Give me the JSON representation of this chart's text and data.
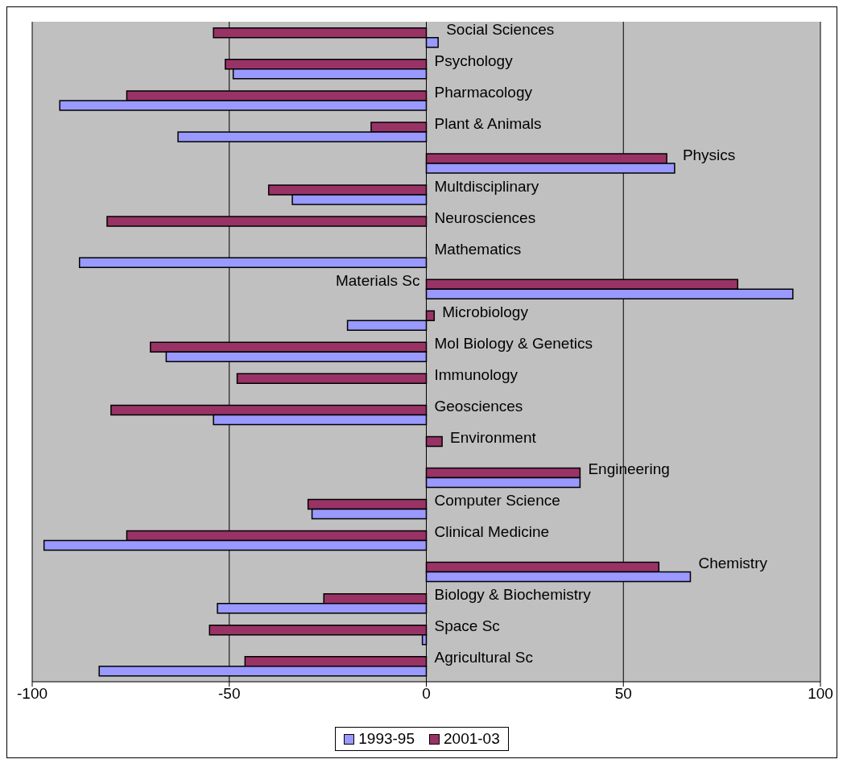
{
  "chart_data": {
    "type": "bar",
    "orientation": "horizontal",
    "categories": [
      "Social Sciences",
      "Psychology",
      "Pharmacology",
      "Plant & Animals",
      "Physics",
      "Multdisciplinary",
      "Neurosciences",
      "Mathematics",
      "Materials Sc",
      "Microbiology",
      "Mol Biology & Genetics",
      "Immunology",
      "Geosciences",
      "Environment",
      "Engineering",
      "Computer Science",
      "Clinical Medicine",
      "Chemistry",
      "Biology & Biochemistry",
      "Space Sc",
      "Agricultural Sc"
    ],
    "series": [
      {
        "name": "1993-95",
        "color": "#9999ff",
        "values": [
          3,
          -49,
          -93,
          -63,
          63,
          -34,
          null,
          -88,
          93,
          -20,
          -66,
          null,
          -54,
          null,
          39,
          -29,
          -97,
          67,
          -53,
          -1,
          -83
        ]
      },
      {
        "name": "2001-03",
        "color": "#993366",
        "values": [
          -54,
          -51,
          -76,
          -14,
          61,
          -40,
          -81,
          null,
          79,
          2,
          -70,
          -48,
          -80,
          4,
          39,
          -30,
          -76,
          59,
          -26,
          -55,
          -46
        ]
      }
    ],
    "xlim": [
      -100,
      100
    ],
    "xticks": [
      -100,
      -50,
      0,
      50,
      100
    ],
    "grid": "x",
    "legend": "bottom"
  }
}
